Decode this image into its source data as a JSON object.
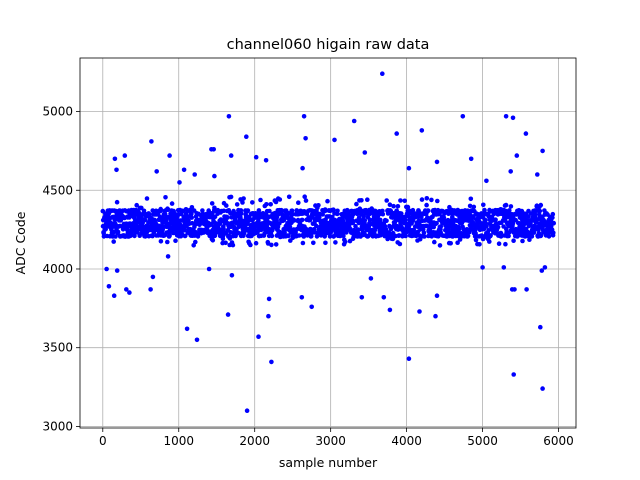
{
  "chart_data": {
    "type": "scatter",
    "title": "channel060 higain raw data",
    "xlabel": "sample number",
    "ylabel": "ADC Code",
    "xlim": [
      -300,
      6230
    ],
    "ylim": [
      2990,
      5340
    ],
    "xticks": [
      0,
      1000,
      2000,
      3000,
      4000,
      5000,
      6000
    ],
    "yticks": [
      3000,
      3500,
      4000,
      4500,
      5000
    ],
    "grid": true,
    "marker_color": "#0000ff",
    "marker": "circle",
    "series": [
      {
        "n_samples": 5940,
        "x_range": [
          0,
          5939
        ],
        "typical_band": [
          4150,
          4460
        ],
        "dense_levels": [
          4210,
          4230,
          4250,
          4270,
          4290,
          4310,
          4330,
          4350,
          4370
        ],
        "outlier_points": [
          [
            50,
            4000
          ],
          [
            80,
            3890
          ],
          [
            150,
            3830
          ],
          [
            160,
            4700
          ],
          [
            180,
            4630
          ],
          [
            190,
            3990
          ],
          [
            290,
            4720
          ],
          [
            310,
            3870
          ],
          [
            350,
            3850
          ],
          [
            630,
            3870
          ],
          [
            640,
            4810
          ],
          [
            660,
            3950
          ],
          [
            710,
            4620
          ],
          [
            860,
            4080
          ],
          [
            880,
            4720
          ],
          [
            1010,
            4550
          ],
          [
            1070,
            4630
          ],
          [
            1110,
            3620
          ],
          [
            1210,
            4600
          ],
          [
            1240,
            3550
          ],
          [
            1400,
            4000
          ],
          [
            1430,
            4760
          ],
          [
            1460,
            4760
          ],
          [
            1470,
            4590
          ],
          [
            1650,
            3710
          ],
          [
            1660,
            4970
          ],
          [
            1690,
            4720
          ],
          [
            1700,
            3960
          ],
          [
            1890,
            4840
          ],
          [
            1900,
            3100
          ],
          [
            2020,
            4710
          ],
          [
            2050,
            3570
          ],
          [
            2150,
            4690
          ],
          [
            2180,
            3700
          ],
          [
            2190,
            3810
          ],
          [
            2220,
            3410
          ],
          [
            2620,
            3820
          ],
          [
            2630,
            4640
          ],
          [
            2650,
            4970
          ],
          [
            2670,
            4830
          ],
          [
            2750,
            3760
          ],
          [
            3050,
            4820
          ],
          [
            3310,
            4940
          ],
          [
            3410,
            3820
          ],
          [
            3450,
            4740
          ],
          [
            3530,
            3940
          ],
          [
            3680,
            5240
          ],
          [
            3700,
            3820
          ],
          [
            3780,
            3740
          ],
          [
            3870,
            4860
          ],
          [
            4030,
            3430
          ],
          [
            4030,
            4640
          ],
          [
            4170,
            3730
          ],
          [
            4200,
            4880
          ],
          [
            4380,
            3700
          ],
          [
            4400,
            4680
          ],
          [
            4400,
            3830
          ],
          [
            4740,
            4970
          ],
          [
            4850,
            4700
          ],
          [
            5000,
            4010
          ],
          [
            5050,
            4560
          ],
          [
            5280,
            4010
          ],
          [
            5310,
            4970
          ],
          [
            5370,
            4620
          ],
          [
            5390,
            3870
          ],
          [
            5400,
            4960
          ],
          [
            5410,
            3330
          ],
          [
            5420,
            3870
          ],
          [
            5450,
            4720
          ],
          [
            5570,
            4860
          ],
          [
            5580,
            3870
          ],
          [
            5720,
            4600
          ],
          [
            5760,
            3630
          ],
          [
            5790,
            3240
          ],
          [
            5790,
            4750
          ],
          [
            5780,
            3990
          ],
          [
            5820,
            4010
          ]
        ]
      }
    ]
  }
}
